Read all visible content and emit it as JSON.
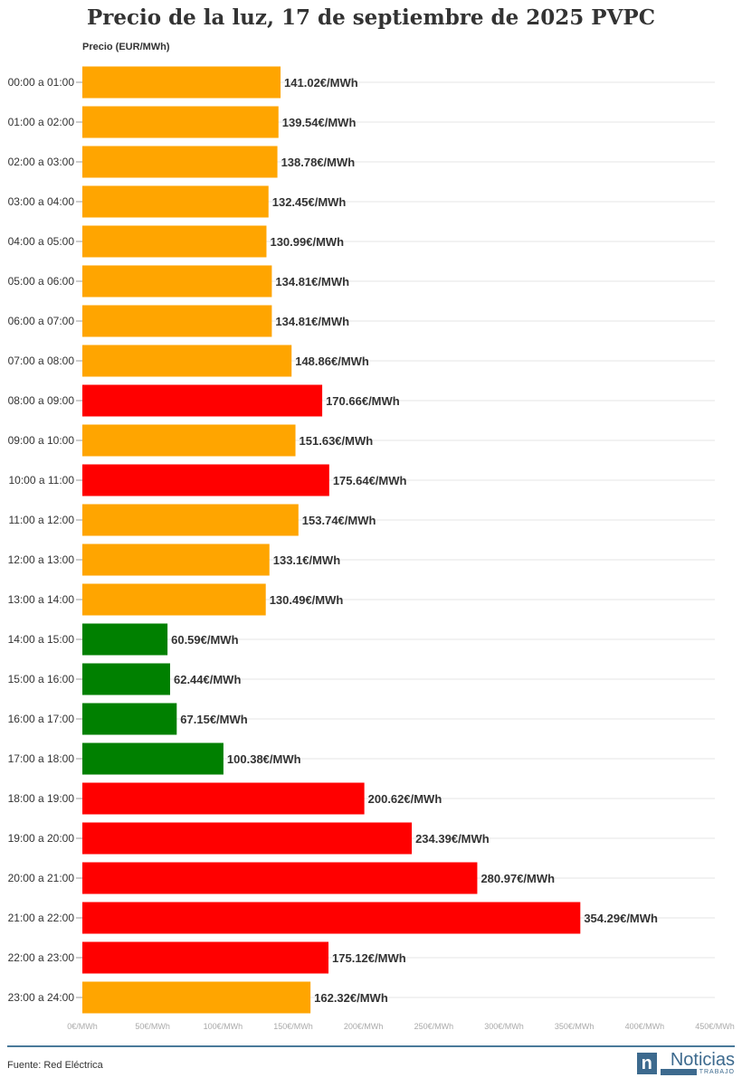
{
  "chart_data": {
    "type": "bar",
    "orientation": "horizontal",
    "title": "Precio de la luz, 17 de septiembre de 2025 PVPC",
    "ylabel": "Precio (EUR/MWh)",
    "xlim": [
      0,
      450
    ],
    "x_ticks": [
      "0€/MWh",
      "50€/MWh",
      "100€/MWh",
      "150€/MWh",
      "200€/MWh",
      "250€/MWh",
      "300€/MWh",
      "350€/MWh",
      "400€/MWh",
      "450€/MWh"
    ],
    "grid": true,
    "categories": [
      "00:00 a 01:00",
      "01:00 a 02:00",
      "02:00 a 03:00",
      "03:00 a 04:00",
      "04:00 a 05:00",
      "05:00 a 06:00",
      "06:00 a 07:00",
      "07:00 a 08:00",
      "08:00 a 09:00",
      "09:00 a 10:00",
      "10:00 a 11:00",
      "11:00 a 12:00",
      "12:00 a 13:00",
      "13:00 a 14:00",
      "14:00 a 15:00",
      "15:00 a 16:00",
      "16:00 a 17:00",
      "17:00 a 18:00",
      "18:00 a 19:00",
      "19:00 a 20:00",
      "20:00 a 21:00",
      "21:00 a 22:00",
      "22:00 a 23:00",
      "23:00 a 24:00"
    ],
    "values": [
      141.02,
      139.54,
      138.78,
      132.45,
      130.99,
      134.81,
      134.81,
      148.86,
      170.66,
      151.63,
      175.64,
      153.74,
      133.1,
      130.49,
      60.59,
      62.44,
      67.15,
      100.38,
      200.62,
      234.39,
      280.97,
      354.29,
      175.12,
      162.32
    ],
    "data_labels": [
      "141.02€/MWh",
      "139.54€/MWh",
      "138.78€/MWh",
      "132.45€/MWh",
      "130.99€/MWh",
      "134.81€/MWh",
      "134.81€/MWh",
      "148.86€/MWh",
      "170.66€/MWh",
      "151.63€/MWh",
      "175.64€/MWh",
      "153.74€/MWh",
      "133.1€/MWh",
      "130.49€/MWh",
      "60.59€/MWh",
      "62.44€/MWh",
      "67.15€/MWh",
      "100.38€/MWh",
      "200.62€/MWh",
      "234.39€/MWh",
      "280.97€/MWh",
      "354.29€/MWh",
      "175.12€/MWh",
      "162.32€/MWh"
    ],
    "colors": [
      "orange",
      "orange",
      "orange",
      "orange",
      "orange",
      "orange",
      "orange",
      "orange",
      "red",
      "orange",
      "red",
      "orange",
      "orange",
      "orange",
      "green",
      "green",
      "green",
      "green",
      "red",
      "red",
      "red",
      "red",
      "red",
      "orange"
    ],
    "palette": {
      "orange": "#FFA500",
      "red": "#FF0000",
      "green": "#008000"
    }
  },
  "footer": {
    "source": "Fuente: Red Eléctrica",
    "logo_text": "Noticias",
    "logo_sub": "TRABAJO"
  }
}
